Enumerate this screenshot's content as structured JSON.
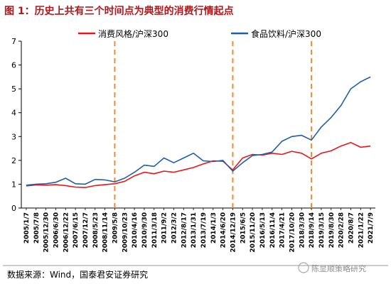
{
  "chart_data": {
    "type": "line",
    "title": "图 1：历史上共有三个时间点为典型的消费行情起点",
    "ylim": [
      0,
      7
    ],
    "yticks": [
      "0",
      "1",
      "2",
      "3",
      "4",
      "5",
      "6",
      "7"
    ],
    "x_tick_labels": [
      "2005/1/7",
      "2005/7/8",
      "2005/12/30",
      "2006/6/30",
      "2006/12/22",
      "2007/6/15",
      "2007/12/7",
      "2008/5/23",
      "2008/11/14",
      "2009/5/8",
      "2009/10/23",
      "2010/4/16",
      "2010/9/30",
      "2011/3/18",
      "2011/9/2",
      "2012/3/2",
      "2012/8/17",
      "2013/1/31",
      "2013/7/19",
      "2014/1/3",
      "2014/6/20",
      "2014/12/19",
      "2015/6/5",
      "2015/11/20",
      "2016/5/13",
      "2016/11/4",
      "2017/4/21",
      "2017/10/20",
      "2018/3/30",
      "2018/9/14",
      "2019/3/15",
      "2019/8/30",
      "2020/2/28",
      "2020/8/7",
      "2021/1/22",
      "2021/7/9"
    ],
    "markers": [
      "2009/5/8",
      "2014/12/19",
      "2018/9/14"
    ],
    "series": [
      {
        "name": "消费风格/沪深300",
        "color": "#e8161a",
        "values": [
          [
            0,
            0.93
          ],
          [
            1,
            0.97
          ],
          [
            2,
            0.96
          ],
          [
            3,
            0.98
          ],
          [
            4,
            0.94
          ],
          [
            5,
            0.88
          ],
          [
            6,
            0.86
          ],
          [
            7,
            0.94
          ],
          [
            8,
            0.98
          ],
          [
            9,
            1.02
          ],
          [
            10,
            1.12
          ],
          [
            11,
            1.35
          ],
          [
            12,
            1.5
          ],
          [
            13,
            1.44
          ],
          [
            14,
            1.55
          ],
          [
            15,
            1.5
          ],
          [
            16,
            1.6
          ],
          [
            17,
            1.7
          ],
          [
            18,
            1.85
          ],
          [
            19,
            1.98
          ],
          [
            20,
            1.96
          ],
          [
            21,
            1.6
          ],
          [
            22,
            2.1
          ],
          [
            23,
            2.25
          ],
          [
            24,
            2.22
          ],
          [
            25,
            2.3
          ],
          [
            26,
            2.25
          ],
          [
            27,
            2.38
          ],
          [
            28,
            2.3
          ],
          [
            29,
            2.06
          ],
          [
            30,
            2.3
          ],
          [
            31,
            2.4
          ],
          [
            32,
            2.6
          ],
          [
            33,
            2.75
          ],
          [
            34,
            2.55
          ],
          [
            35,
            2.6
          ]
        ]
      },
      {
        "name": "食品饮料/沪深300",
        "color": "#1f5ea8",
        "values": [
          [
            0,
            0.96
          ],
          [
            1,
            1.0
          ],
          [
            2,
            1.02
          ],
          [
            3,
            1.08
          ],
          [
            4,
            1.25
          ],
          [
            5,
            1.02
          ],
          [
            6,
            1.0
          ],
          [
            7,
            1.2
          ],
          [
            8,
            1.18
          ],
          [
            9,
            1.1
          ],
          [
            10,
            1.25
          ],
          [
            11,
            1.5
          ],
          [
            12,
            1.8
          ],
          [
            13,
            1.75
          ],
          [
            14,
            2.1
          ],
          [
            15,
            1.9
          ],
          [
            16,
            2.1
          ],
          [
            17,
            2.3
          ],
          [
            18,
            1.98
          ],
          [
            19,
            1.95
          ],
          [
            20,
            2.0
          ],
          [
            21,
            1.55
          ],
          [
            22,
            1.9
          ],
          [
            23,
            2.2
          ],
          [
            24,
            2.25
          ],
          [
            25,
            2.35
          ],
          [
            26,
            2.8
          ],
          [
            27,
            3.0
          ],
          [
            28,
            3.05
          ],
          [
            29,
            2.85
          ],
          [
            30,
            3.4
          ],
          [
            31,
            3.8
          ],
          [
            32,
            4.3
          ],
          [
            33,
            5.0
          ],
          [
            34,
            5.3
          ],
          [
            35,
            5.5
          ]
        ]
      }
    ]
  },
  "footer": {
    "source": "数据来源：Wind，国泰君安证券研究",
    "watermark": "陈显顺策略研究"
  }
}
